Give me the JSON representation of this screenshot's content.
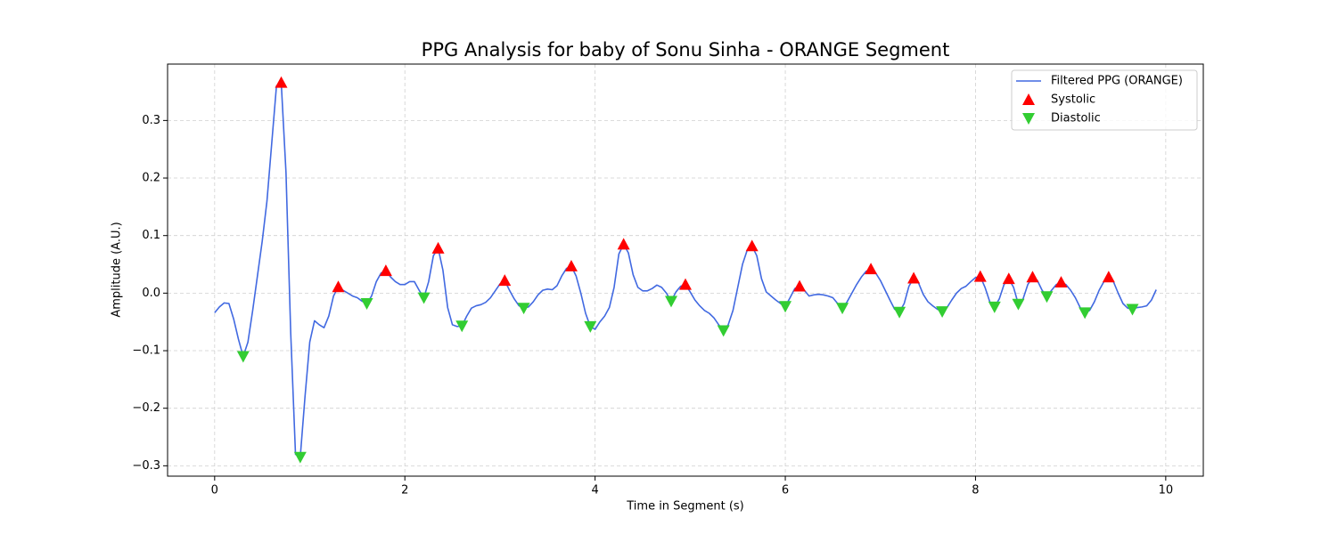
{
  "chart_data": {
    "type": "line",
    "title": "PPG Analysis for baby of Sonu Sinha - ORANGE Segment",
    "xlabel": "Time in Segment (s)",
    "ylabel": "Amplitude (A.U.)",
    "xlim": [
      -0.495,
      10.395
    ],
    "ylim": [
      -0.318,
      0.398
    ],
    "xticks": [
      0,
      2,
      4,
      6,
      8,
      10
    ],
    "yticks": [
      {
        "value": -0.3,
        "label": "−0.3"
      },
      {
        "value": -0.2,
        "label": "−0.2"
      },
      {
        "value": -0.1,
        "label": "−0.1"
      },
      {
        "value": 0,
        "label": "0.0"
      },
      0.1,
      0.2,
      0.3
    ],
    "grid": true,
    "legend": "upper right",
    "series": [
      {
        "name": "Filtered PPG (ORANGE)",
        "color": "#4169e1",
        "x": [
          0,
          0.05,
          0.1,
          0.15,
          0.2,
          0.25,
          0.3,
          0.35,
          0.4,
          0.45,
          0.5,
          0.55,
          0.6,
          0.65,
          0.7,
          0.75,
          0.8,
          0.85,
          0.9,
          0.95,
          1,
          1.05,
          1.1,
          1.15,
          1.2,
          1.25,
          1.3,
          1.35,
          1.4,
          1.45,
          1.5,
          1.55,
          1.6,
          1.65,
          1.7,
          1.75,
          1.8,
          1.85,
          1.9,
          1.95,
          2,
          2.05,
          2.1,
          2.15,
          2.2,
          2.25,
          2.3,
          2.35,
          2.4,
          2.45,
          2.5,
          2.55,
          2.6,
          2.65,
          2.7,
          2.75,
          2.8,
          2.85,
          2.9,
          2.95,
          3,
          3.05,
          3.1,
          3.15,
          3.2,
          3.25,
          3.3,
          3.35,
          3.4,
          3.45,
          3.5,
          3.55,
          3.6,
          3.65,
          3.7,
          3.75,
          3.8,
          3.85,
          3.9,
          3.95,
          4,
          4.05,
          4.1,
          4.15,
          4.2,
          4.25,
          4.3,
          4.35,
          4.4,
          4.45,
          4.5,
          4.55,
          4.6,
          4.65,
          4.7,
          4.75,
          4.8,
          4.85,
          4.9,
          4.95,
          5,
          5.05,
          5.1,
          5.15,
          5.2,
          5.25,
          5.3,
          5.35,
          5.4,
          5.45,
          5.5,
          5.55,
          5.6,
          5.65,
          5.7,
          5.75,
          5.8,
          5.85,
          5.9,
          5.95,
          6,
          6.05,
          6.1,
          6.15,
          6.2,
          6.25,
          6.3,
          6.35,
          6.4,
          6.45,
          6.5,
          6.55,
          6.6,
          6.65,
          6.7,
          6.75,
          6.8,
          6.85,
          6.9,
          6.95,
          7,
          7.05,
          7.1,
          7.15,
          7.2,
          7.25,
          7.3,
          7.35,
          7.4,
          7.45,
          7.5,
          7.55,
          7.6,
          7.65,
          7.7,
          7.75,
          7.8,
          7.85,
          7.9,
          7.95,
          8,
          8.05,
          8.1,
          8.15,
          8.2,
          8.25,
          8.3,
          8.35,
          8.4,
          8.45,
          8.5,
          8.55,
          8.6,
          8.65,
          8.7,
          8.75,
          8.8,
          8.85,
          8.9,
          8.95,
          9,
          9.05,
          9.1,
          9.15,
          9.2,
          9.25,
          9.3,
          9.35,
          9.4,
          9.45,
          9.5,
          9.55,
          9.6,
          9.65,
          9.7,
          9.75,
          9.8,
          9.85,
          9.9
        ],
        "values": [
          -0.034,
          -0.024,
          -0.017,
          -0.018,
          -0.045,
          -0.08,
          -0.11,
          -0.085,
          -0.03,
          0.03,
          0.09,
          0.16,
          0.26,
          0.36,
          0.366,
          0.21,
          -0.07,
          -0.28,
          -0.285,
          -0.18,
          -0.085,
          -0.048,
          -0.055,
          -0.06,
          -0.04,
          -0.005,
          0.011,
          0.005,
          0,
          -0.005,
          -0.008,
          -0.014,
          -0.018,
          -0.005,
          0.02,
          0.035,
          0.039,
          0.028,
          0.02,
          0.015,
          0.015,
          0.02,
          0.02,
          0.005,
          -0.008,
          0.02,
          0.065,
          0.078,
          0.04,
          -0.025,
          -0.055,
          -0.058,
          -0.057,
          -0.04,
          -0.026,
          -0.022,
          -0.02,
          -0.016,
          -0.008,
          0.004,
          0.016,
          0.022,
          0.005,
          -0.01,
          -0.022,
          -0.026,
          -0.024,
          -0.015,
          -0.003,
          0.005,
          0.007,
          0.006,
          0.013,
          0.03,
          0.043,
          0.047,
          0.03,
          0,
          -0.035,
          -0.058,
          -0.063,
          -0.05,
          -0.04,
          -0.025,
          0.01,
          0.068,
          0.085,
          0.07,
          0.032,
          0.01,
          0.004,
          0.004,
          0.008,
          0.014,
          0.01,
          0,
          -0.014,
          0.002,
          0.012,
          0.015,
          0.002,
          -0.012,
          -0.022,
          -0.03,
          -0.035,
          -0.043,
          -0.055,
          -0.065,
          -0.055,
          -0.03,
          0.01,
          0.05,
          0.075,
          0.082,
          0.065,
          0.025,
          0.002,
          -0.005,
          -0.012,
          -0.018,
          -0.023,
          -0.008,
          0.008,
          0.012,
          0.005,
          -0.005,
          -0.003,
          -0.002,
          -0.003,
          -0.005,
          -0.008,
          -0.018,
          -0.026,
          -0.015,
          0,
          0.015,
          0.028,
          0.038,
          0.042,
          0.035,
          0.022,
          0.005,
          -0.012,
          -0.028,
          -0.033,
          -0.018,
          0.012,
          0.026,
          0.018,
          -0.002,
          -0.015,
          -0.022,
          -0.028,
          -0.032,
          -0.025,
          -0.012,
          0,
          0.008,
          0.012,
          0.02,
          0.027,
          0.029,
          0.01,
          -0.015,
          -0.024,
          -0.01,
          0.015,
          0.025,
          0.01,
          -0.019,
          -0.01,
          0.015,
          0.028,
          0.022,
          0.005,
          -0.006,
          0.005,
          0.015,
          0.019,
          0.015,
          0.005,
          -0.008,
          -0.025,
          -0.034,
          -0.03,
          -0.015,
          0.005,
          0.02,
          0.028,
          0.02,
          0,
          -0.018,
          -0.026,
          -0.028,
          -0.025,
          -0.024,
          -0.022,
          -0.012,
          0.006
        ]
      },
      {
        "name": "Systolic",
        "color": "#ff0000",
        "marker": "^",
        "x": [
          0.7,
          1.3,
          1.8,
          2.35,
          3.05,
          3.75,
          4.3,
          4.95,
          5.65,
          6.15,
          6.9,
          7.35,
          8.05,
          8.35,
          8.6,
          8.9,
          9.4
        ],
        "values": [
          0.366,
          0.011,
          0.039,
          0.078,
          0.022,
          0.047,
          0.085,
          0.015,
          0.082,
          0.012,
          0.042,
          0.026,
          0.029,
          0.025,
          0.028,
          0.019,
          0.028
        ]
      },
      {
        "name": "Diastolic",
        "color": "#32cd32",
        "marker": "v",
        "x": [
          0.3,
          0.9,
          1.6,
          2.2,
          2.6,
          3.25,
          3.95,
          4.8,
          5.35,
          6,
          6.6,
          7.2,
          7.65,
          8.2,
          8.45,
          8.75,
          9.15,
          9.65
        ],
        "values": [
          -0.11,
          -0.285,
          -0.018,
          -0.008,
          -0.057,
          -0.026,
          -0.058,
          -0.014,
          -0.065,
          -0.023,
          -0.026,
          -0.033,
          -0.032,
          -0.024,
          -0.019,
          -0.006,
          -0.034,
          -0.028
        ]
      }
    ]
  }
}
